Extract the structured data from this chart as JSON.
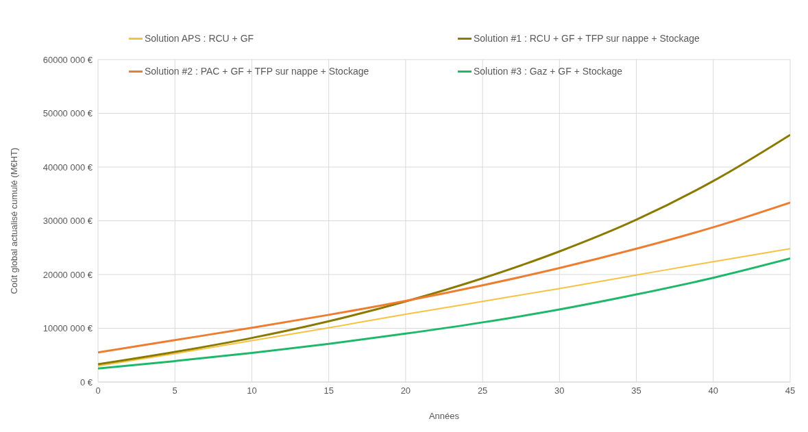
{
  "chart_data": {
    "type": "line",
    "xlabel": "Années",
    "ylabel": "Coût global actualisé cumulé (M€HT)",
    "x": [
      0,
      5,
      10,
      15,
      20,
      25,
      30,
      35,
      40,
      45
    ],
    "series": [
      {
        "name": "Solution APS : RCU + GF",
        "color": "#f5c242",
        "values": [
          3000000,
          5300000,
          7700000,
          10100000,
          12600000,
          15000000,
          17400000,
          19900000,
          22400000,
          24800000
        ]
      },
      {
        "name": "Solution #1 : RCU + GF + TFP sur nappe + Stockage",
        "color": "#8b7a00",
        "values": [
          3300000,
          5600000,
          8200000,
          11300000,
          15000000,
          19300000,
          24300000,
          30200000,
          37400000,
          46000000
        ]
      },
      {
        "name": "Solution #2 : PAC + GF + TFP sur nappe + Stockage",
        "color": "#ed7d31",
        "values": [
          5500000,
          7800000,
          10100000,
          12500000,
          15100000,
          18000000,
          21200000,
          24800000,
          28800000,
          33400000
        ]
      },
      {
        "name": "Solution #3 : Gaz + GF + Stockage",
        "color": "#1fb86a",
        "values": [
          2500000,
          3900000,
          5400000,
          7100000,
          9000000,
          11100000,
          13500000,
          16300000,
          19400000,
          23000000
        ]
      }
    ],
    "xlim": [
      0,
      45
    ],
    "xticks": [
      0,
      5,
      10,
      15,
      20,
      25,
      30,
      35,
      40,
      45
    ],
    "ylim": [
      0,
      60000000
    ],
    "yticks": [
      {
        "value": 0,
        "label": "0 €"
      },
      {
        "value": 10000000,
        "label": "10000 000 €"
      },
      {
        "value": 20000000,
        "label": "20000 000 €"
      },
      {
        "value": 30000000,
        "label": "30000 000 €"
      },
      {
        "value": 40000000,
        "label": "40000 000 €"
      },
      {
        "value": 50000000,
        "label": "50000 000 €"
      },
      {
        "value": 60000000,
        "label": "60000 000 €"
      }
    ],
    "grid": true,
    "legend": "top",
    "marker": "none",
    "line_style": "solid"
  }
}
